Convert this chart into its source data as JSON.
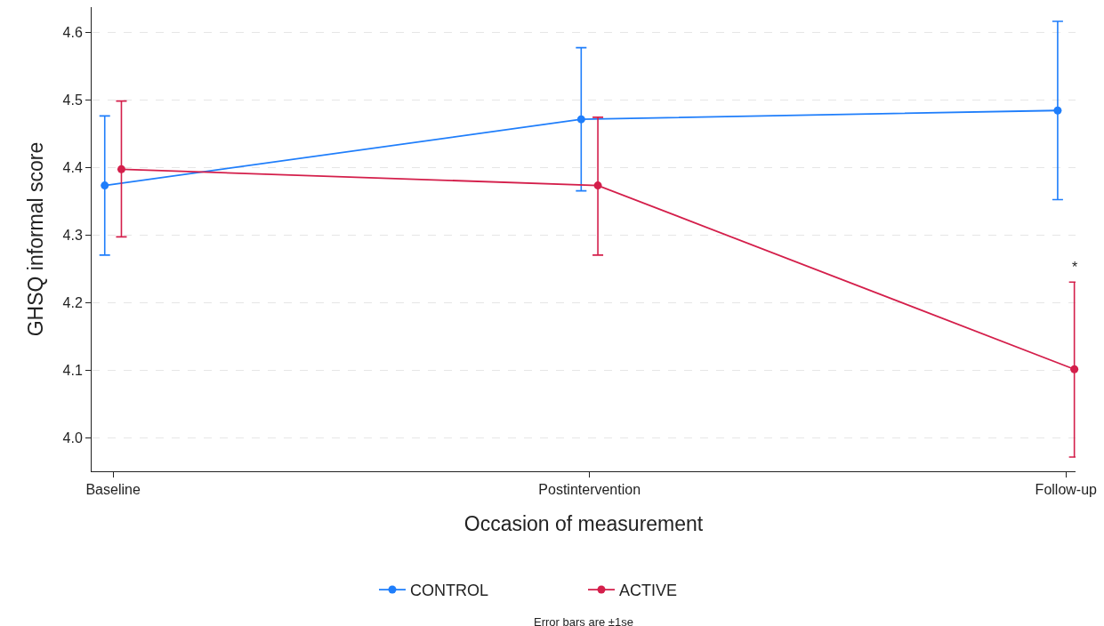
{
  "chart_data": {
    "type": "line",
    "xlabel": "Occasion of measurement",
    "ylabel": "GHSQ informal score",
    "categories": [
      "Baseline",
      "Postintervention",
      "Follow-up"
    ],
    "series": [
      {
        "name": "CONTROL",
        "color": "#1f7efb",
        "values": [
          4.373,
          4.471,
          4.484
        ],
        "errors": [
          [
            4.27,
            4.476
          ],
          [
            4.365,
            4.577
          ],
          [
            4.352,
            4.616
          ]
        ]
      },
      {
        "name": "ACTIVE",
        "color": "#d41f4b",
        "values": [
          4.397,
          4.373,
          4.101
        ],
        "errors": [
          [
            4.297,
            4.498
          ],
          [
            4.27,
            4.474
          ],
          [
            3.971,
            4.23
          ]
        ]
      }
    ],
    "ylim": [
      3.95,
      4.637
    ],
    "yticks": [
      {
        "value": 4.0,
        "label": "4.0"
      },
      4.1,
      4.2,
      4.3,
      4.4,
      4.5,
      4.6
    ],
    "grid": "y",
    "legend": "bottom",
    "marker": "circle",
    "line_style": "solid",
    "annotations": [
      "*",
      "Error bars are ±1se"
    ]
  }
}
